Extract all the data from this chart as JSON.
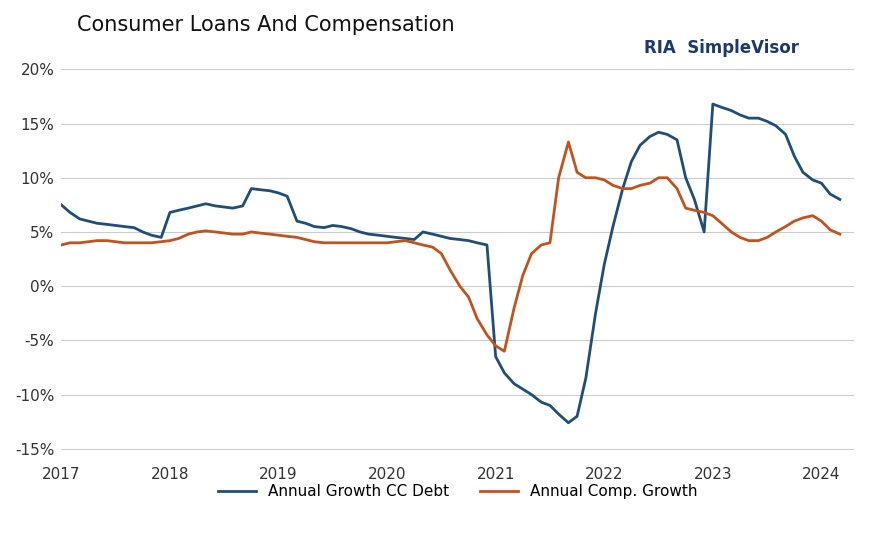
{
  "title": "Consumer Loans And Compensation",
  "background_color": "#ffffff",
  "grid_color": "#cccccc",
  "ylim": [
    -0.16,
    0.22
  ],
  "yticks": [
    -0.15,
    -0.1,
    -0.05,
    0.0,
    0.05,
    0.1,
    0.15,
    0.2
  ],
  "cc_debt_color": "#1f4e79",
  "comp_growth_color": "#c0531e",
  "legend_label_cc": "Annual Growth CC Debt",
  "legend_label_comp": "Annual Comp. Growth",
  "cc_debt": {
    "x": [
      2017.0,
      2017.08,
      2017.17,
      2017.25,
      2017.33,
      2017.42,
      2017.5,
      2017.58,
      2017.67,
      2017.75,
      2017.83,
      2017.92,
      2018.0,
      2018.08,
      2018.17,
      2018.25,
      2018.33,
      2018.42,
      2018.5,
      2018.58,
      2018.67,
      2018.75,
      2018.83,
      2018.92,
      2019.0,
      2019.08,
      2019.17,
      2019.25,
      2019.33,
      2019.42,
      2019.5,
      2019.58,
      2019.67,
      2019.75,
      2019.83,
      2019.92,
      2020.0,
      2020.08,
      2020.17,
      2020.25,
      2020.33,
      2020.42,
      2020.5,
      2020.58,
      2020.67,
      2020.75,
      2020.83,
      2020.92,
      2021.0,
      2021.08,
      2021.17,
      2021.25,
      2021.33,
      2021.42,
      2021.5,
      2021.58,
      2021.67,
      2021.75,
      2021.83,
      2021.92,
      2022.0,
      2022.08,
      2022.17,
      2022.25,
      2022.33,
      2022.42,
      2022.5,
      2022.58,
      2022.67,
      2022.75,
      2022.83,
      2022.92,
      2023.0,
      2023.08,
      2023.17,
      2023.25,
      2023.33,
      2023.42,
      2023.5,
      2023.58,
      2023.67,
      2023.75,
      2023.83,
      2023.92,
      2024.0,
      2024.08,
      2024.17
    ],
    "y": [
      0.075,
      0.068,
      0.062,
      0.06,
      0.058,
      0.057,
      0.056,
      0.055,
      0.054,
      0.05,
      0.047,
      0.045,
      0.068,
      0.07,
      0.072,
      0.074,
      0.076,
      0.074,
      0.073,
      0.072,
      0.074,
      0.09,
      0.089,
      0.088,
      0.086,
      0.083,
      0.06,
      0.058,
      0.055,
      0.054,
      0.056,
      0.055,
      0.053,
      0.05,
      0.048,
      0.047,
      0.046,
      0.045,
      0.044,
      0.043,
      0.05,
      0.048,
      0.046,
      0.044,
      0.043,
      0.042,
      0.04,
      0.038,
      -0.065,
      -0.08,
      -0.09,
      -0.095,
      -0.1,
      -0.107,
      -0.11,
      -0.118,
      -0.126,
      -0.12,
      -0.085,
      -0.025,
      0.02,
      0.055,
      0.09,
      0.115,
      0.13,
      0.138,
      0.142,
      0.14,
      0.135,
      0.1,
      0.08,
      0.05,
      0.168,
      0.165,
      0.162,
      0.158,
      0.155,
      0.155,
      0.152,
      0.148,
      0.14,
      0.12,
      0.105,
      0.098,
      0.095,
      0.085,
      0.08
    ]
  },
  "comp_growth": {
    "x": [
      2017.0,
      2017.08,
      2017.17,
      2017.25,
      2017.33,
      2017.42,
      2017.5,
      2017.58,
      2017.67,
      2017.75,
      2017.83,
      2017.92,
      2018.0,
      2018.08,
      2018.17,
      2018.25,
      2018.33,
      2018.42,
      2018.5,
      2018.58,
      2018.67,
      2018.75,
      2018.83,
      2018.92,
      2019.0,
      2019.08,
      2019.17,
      2019.25,
      2019.33,
      2019.42,
      2019.5,
      2019.58,
      2019.67,
      2019.75,
      2019.83,
      2019.92,
      2020.0,
      2020.08,
      2020.17,
      2020.25,
      2020.33,
      2020.42,
      2020.5,
      2020.58,
      2020.67,
      2020.75,
      2020.83,
      2020.92,
      2021.0,
      2021.08,
      2021.17,
      2021.25,
      2021.33,
      2021.42,
      2021.5,
      2021.58,
      2021.67,
      2021.75,
      2021.83,
      2021.92,
      2022.0,
      2022.08,
      2022.17,
      2022.25,
      2022.33,
      2022.42,
      2022.5,
      2022.58,
      2022.67,
      2022.75,
      2022.83,
      2022.92,
      2023.0,
      2023.08,
      2023.17,
      2023.25,
      2023.33,
      2023.42,
      2023.5,
      2023.58,
      2023.67,
      2023.75,
      2023.83,
      2023.92,
      2024.0,
      2024.08,
      2024.17
    ],
    "y": [
      0.038,
      0.04,
      0.04,
      0.041,
      0.042,
      0.042,
      0.041,
      0.04,
      0.04,
      0.04,
      0.04,
      0.041,
      0.042,
      0.044,
      0.048,
      0.05,
      0.051,
      0.05,
      0.049,
      0.048,
      0.048,
      0.05,
      0.049,
      0.048,
      0.047,
      0.046,
      0.045,
      0.043,
      0.041,
      0.04,
      0.04,
      0.04,
      0.04,
      0.04,
      0.04,
      0.04,
      0.04,
      0.041,
      0.042,
      0.04,
      0.038,
      0.036,
      0.03,
      0.015,
      0.0,
      -0.01,
      -0.03,
      -0.045,
      -0.055,
      -0.06,
      -0.02,
      0.01,
      0.03,
      0.038,
      0.04,
      0.1,
      0.133,
      0.105,
      0.1,
      0.1,
      0.098,
      0.093,
      0.09,
      0.09,
      0.093,
      0.095,
      0.1,
      0.1,
      0.09,
      0.072,
      0.07,
      0.068,
      0.065,
      0.058,
      0.05,
      0.045,
      0.042,
      0.042,
      0.045,
      0.05,
      0.055,
      0.06,
      0.063,
      0.065,
      0.06,
      0.052,
      0.048
    ]
  }
}
